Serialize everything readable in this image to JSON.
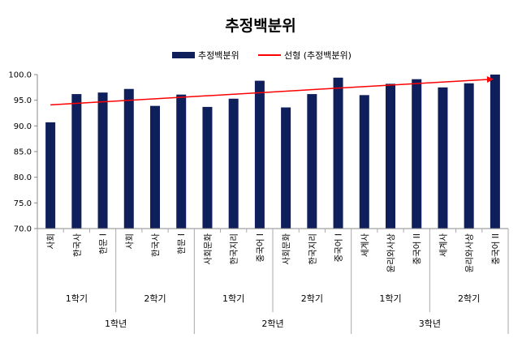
{
  "chart_data": {
    "type": "bar",
    "title": "추정백분위",
    "legend": {
      "placement": "top",
      "bar_label": "추정백분위",
      "trend_label": "선형 (추정백분위)"
    },
    "ylim": [
      70.0,
      100.0
    ],
    "yticks": [
      "100.0",
      "95.0",
      "90.0",
      "85.0",
      "80.0",
      "75.0",
      "70.0"
    ],
    "grid": false,
    "categories": [
      "사회",
      "한국사",
      "한문 I",
      "사회",
      "한국사",
      "한문 I",
      "사회문화",
      "한국지리",
      "중국어 I",
      "사회문화",
      "한국지리",
      "중국어 I",
      "세계사",
      "윤리와사상",
      "중국어 II",
      "세계사",
      "윤리와사상",
      "중국어 II"
    ],
    "values": [
      90.7,
      96.2,
      96.5,
      97.2,
      93.9,
      96.1,
      93.7,
      95.3,
      98.8,
      93.6,
      96.2,
      99.4,
      96.0,
      98.2,
      99.1,
      97.5,
      98.3,
      100.0
    ],
    "semesters": [
      {
        "label": "1학기",
        "span": [
          0,
          2
        ]
      },
      {
        "label": "2학기",
        "span": [
          3,
          5
        ]
      },
      {
        "label": "1학기",
        "span": [
          6,
          8
        ]
      },
      {
        "label": "2학기",
        "span": [
          9,
          11
        ]
      },
      {
        "label": "1학기",
        "span": [
          12,
          14
        ]
      },
      {
        "label": "2학기",
        "span": [
          15,
          17
        ]
      }
    ],
    "grades": [
      {
        "label": "1학년",
        "span": [
          0,
          5
        ]
      },
      {
        "label": "2학년",
        "span": [
          6,
          11
        ]
      },
      {
        "label": "3학년",
        "span": [
          12,
          17
        ]
      }
    ],
    "trendline": {
      "type": "linear",
      "start": 94.1,
      "end": 99.1
    },
    "colors": {
      "bar": "#0f1f5c",
      "trend": "#ff0000"
    }
  }
}
